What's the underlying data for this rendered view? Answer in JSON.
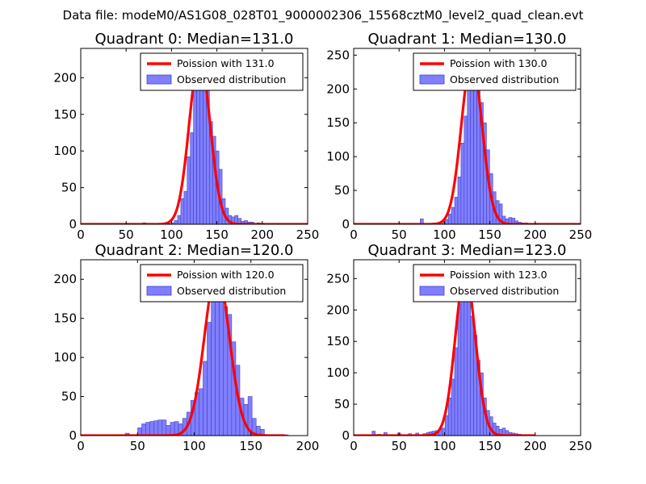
{
  "suptitle": "Data file: modeM0/AS1G08_028T01_9000002306_15568cztM0_level2_quad_clean.evt",
  "colors": {
    "bar_fill": "#7f7fff",
    "bar_edge": "#4040c0",
    "fit_line": "#ff0000",
    "axes": "#000000",
    "background": "#ffffff"
  },
  "chart_data": [
    {
      "type": "bar",
      "title": "Quadrant 0: Median=131.0",
      "xlim": [
        0,
        250
      ],
      "ylim": [
        0,
        240
      ],
      "xticks": [
        0,
        50,
        100,
        150,
        200,
        250
      ],
      "yticks": [
        0,
        50,
        100,
        150,
        200
      ],
      "legend": [
        "Poission with 131.0",
        "Observed distribution"
      ],
      "legend_position": "top-right",
      "bin_width": 3.5,
      "bins": [
        {
          "x": 70,
          "y": 2
        },
        {
          "x": 84,
          "y": 1
        },
        {
          "x": 98,
          "y": 1
        },
        {
          "x": 101.5,
          "y": 2
        },
        {
          "x": 105,
          "y": 5
        },
        {
          "x": 108.5,
          "y": 12
        },
        {
          "x": 112,
          "y": 35
        },
        {
          "x": 115.5,
          "y": 45
        },
        {
          "x": 119,
          "y": 92
        },
        {
          "x": 122.5,
          "y": 125
        },
        {
          "x": 126,
          "y": 215
        },
        {
          "x": 129.5,
          "y": 225
        },
        {
          "x": 133,
          "y": 230
        },
        {
          "x": 136.5,
          "y": 220
        },
        {
          "x": 140,
          "y": 200
        },
        {
          "x": 143.5,
          "y": 140
        },
        {
          "x": 147,
          "y": 120
        },
        {
          "x": 150.5,
          "y": 100
        },
        {
          "x": 154,
          "y": 75
        },
        {
          "x": 157.5,
          "y": 35
        },
        {
          "x": 161,
          "y": 22
        },
        {
          "x": 164.5,
          "y": 12
        },
        {
          "x": 168,
          "y": 10
        },
        {
          "x": 171.5,
          "y": 12
        },
        {
          "x": 175,
          "y": 8
        },
        {
          "x": 178.5,
          "y": 4
        },
        {
          "x": 182,
          "y": 5
        },
        {
          "x": 185.5,
          "y": 3
        },
        {
          "x": 189,
          "y": 3
        },
        {
          "x": 196,
          "y": 2
        },
        {
          "x": 203,
          "y": 1
        }
      ],
      "fit": {
        "lambda": 131.0,
        "peak": 228,
        "x_range": [
          0,
          250
        ]
      }
    },
    {
      "type": "bar",
      "title": "Quadrant 1: Median=130.0",
      "xlim": [
        0,
        250
      ],
      "ylim": [
        0,
        260
      ],
      "xticks": [
        0,
        50,
        100,
        150,
        200,
        250
      ],
      "yticks": [
        0,
        50,
        100,
        150,
        200,
        250
      ],
      "legend": [
        "Poission with 130.0",
        "Observed distribution"
      ],
      "legend_position": "top-right",
      "bin_width": 3.5,
      "bins": [
        {
          "x": 75,
          "y": 8
        },
        {
          "x": 89,
          "y": 2
        },
        {
          "x": 99,
          "y": 3
        },
        {
          "x": 102.5,
          "y": 7
        },
        {
          "x": 106,
          "y": 15
        },
        {
          "x": 109.5,
          "y": 25
        },
        {
          "x": 113,
          "y": 40
        },
        {
          "x": 116.5,
          "y": 70
        },
        {
          "x": 120,
          "y": 120
        },
        {
          "x": 123.5,
          "y": 160
        },
        {
          "x": 127,
          "y": 200
        },
        {
          "x": 130.5,
          "y": 232
        },
        {
          "x": 134,
          "y": 240
        },
        {
          "x": 137.5,
          "y": 220
        },
        {
          "x": 141,
          "y": 180
        },
        {
          "x": 144.5,
          "y": 150
        },
        {
          "x": 148,
          "y": 110
        },
        {
          "x": 151.5,
          "y": 75
        },
        {
          "x": 155,
          "y": 48
        },
        {
          "x": 158.5,
          "y": 35
        },
        {
          "x": 162,
          "y": 30
        },
        {
          "x": 165.5,
          "y": 12
        },
        {
          "x": 169,
          "y": 8
        },
        {
          "x": 172.5,
          "y": 10
        },
        {
          "x": 176,
          "y": 9
        },
        {
          "x": 179.5,
          "y": 5
        },
        {
          "x": 183,
          "y": 3
        },
        {
          "x": 186.5,
          "y": 2
        },
        {
          "x": 190,
          "y": 2
        }
      ],
      "fit": {
        "lambda": 130.0,
        "peak": 242,
        "x_range": [
          0,
          250
        ]
      }
    },
    {
      "type": "bar",
      "title": "Quadrant 2: Median=120.0",
      "xlim": [
        0,
        200
      ],
      "ylim": [
        0,
        225
      ],
      "xticks": [
        0,
        50,
        100,
        150,
        200
      ],
      "yticks": [
        0,
        50,
        100,
        150,
        200
      ],
      "legend": [
        "Poission with 120.0",
        "Observed distribution"
      ],
      "legend_position": "top-right",
      "bin_width": 3.6,
      "bins": [
        {
          "x": 41,
          "y": 3
        },
        {
          "x": 52,
          "y": 10
        },
        {
          "x": 55.6,
          "y": 15
        },
        {
          "x": 59.2,
          "y": 17
        },
        {
          "x": 62.8,
          "y": 18
        },
        {
          "x": 66.4,
          "y": 19
        },
        {
          "x": 70,
          "y": 20
        },
        {
          "x": 73.6,
          "y": 20
        },
        {
          "x": 77.2,
          "y": 13
        },
        {
          "x": 80.8,
          "y": 17
        },
        {
          "x": 84.4,
          "y": 18
        },
        {
          "x": 88,
          "y": 15
        },
        {
          "x": 91.6,
          "y": 22
        },
        {
          "x": 95.2,
          "y": 30
        },
        {
          "x": 98.8,
          "y": 45
        },
        {
          "x": 102.4,
          "y": 55
        },
        {
          "x": 106,
          "y": 60
        },
        {
          "x": 109.6,
          "y": 95
        },
        {
          "x": 113.2,
          "y": 145
        },
        {
          "x": 116.8,
          "y": 200
        },
        {
          "x": 120.4,
          "y": 215
        },
        {
          "x": 124,
          "y": 200
        },
        {
          "x": 127.6,
          "y": 165
        },
        {
          "x": 131.2,
          "y": 155
        },
        {
          "x": 134.8,
          "y": 120
        },
        {
          "x": 138.4,
          "y": 90
        },
        {
          "x": 142,
          "y": 48
        },
        {
          "x": 145.6,
          "y": 40
        },
        {
          "x": 149.2,
          "y": 50
        },
        {
          "x": 152.8,
          "y": 22
        },
        {
          "x": 156.4,
          "y": 12
        },
        {
          "x": 160,
          "y": 8
        },
        {
          "x": 181,
          "y": 1
        }
      ],
      "fit": {
        "lambda": 120.0,
        "peak": 210,
        "x_range": [
          0,
          180
        ]
      }
    },
    {
      "type": "bar",
      "title": "Quadrant 3: Median=123.0",
      "xlim": [
        0,
        250
      ],
      "ylim": [
        0,
        280
      ],
      "xticks": [
        0,
        50,
        100,
        150,
        200,
        250
      ],
      "yticks": [
        0,
        50,
        100,
        150,
        200,
        250
      ],
      "legend": [
        "Poission with 123.0",
        "Observed distribution"
      ],
      "legend_position": "top-right",
      "bin_width": 3.5,
      "bins": [
        {
          "x": 22,
          "y": 7
        },
        {
          "x": 28,
          "y": 2
        },
        {
          "x": 35,
          "y": 5
        },
        {
          "x": 50,
          "y": 4
        },
        {
          "x": 62,
          "y": 3
        },
        {
          "x": 70,
          "y": 4
        },
        {
          "x": 78,
          "y": 3
        },
        {
          "x": 82,
          "y": 5
        },
        {
          "x": 85,
          "y": 6
        },
        {
          "x": 88,
          "y": 7
        },
        {
          "x": 92,
          "y": 8
        },
        {
          "x": 95.5,
          "y": 10
        },
        {
          "x": 99,
          "y": 12
        },
        {
          "x": 102.5,
          "y": 32
        },
        {
          "x": 106,
          "y": 60
        },
        {
          "x": 109.5,
          "y": 90
        },
        {
          "x": 113,
          "y": 140
        },
        {
          "x": 116.5,
          "y": 210
        },
        {
          "x": 120,
          "y": 230
        },
        {
          "x": 123.5,
          "y": 260
        },
        {
          "x": 127,
          "y": 230
        },
        {
          "x": 130.5,
          "y": 190
        },
        {
          "x": 134,
          "y": 160
        },
        {
          "x": 137.5,
          "y": 120
        },
        {
          "x": 141,
          "y": 100
        },
        {
          "x": 144.5,
          "y": 60
        },
        {
          "x": 148,
          "y": 40
        },
        {
          "x": 151.5,
          "y": 30
        },
        {
          "x": 155,
          "y": 20
        },
        {
          "x": 158.5,
          "y": 15
        },
        {
          "x": 162,
          "y": 10
        },
        {
          "x": 165.5,
          "y": 12
        },
        {
          "x": 169,
          "y": 8
        },
        {
          "x": 172.5,
          "y": 5
        },
        {
          "x": 176,
          "y": 4
        },
        {
          "x": 179.5,
          "y": 3
        },
        {
          "x": 183,
          "y": 2
        }
      ],
      "fit": {
        "lambda": 123.0,
        "peak": 258,
        "x_range": [
          0,
          200
        ]
      }
    }
  ]
}
